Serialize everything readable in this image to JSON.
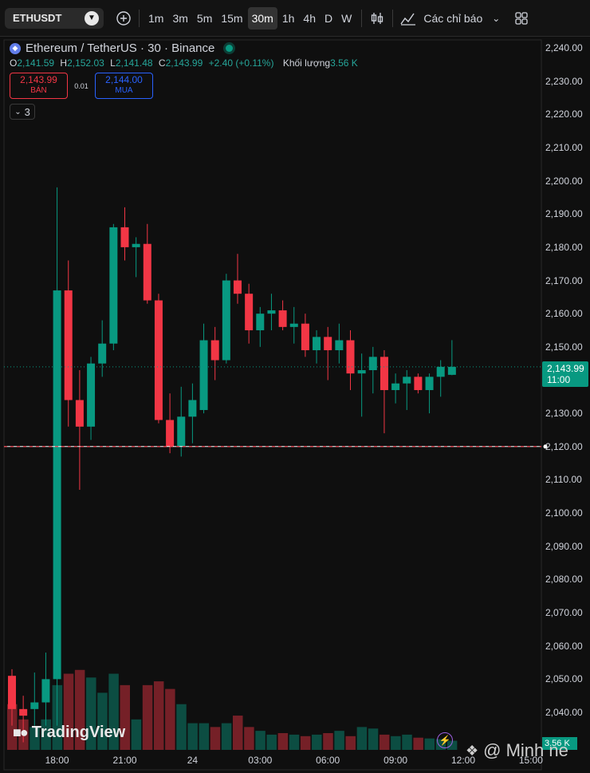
{
  "toolbar": {
    "symbol": "ETHUSDT",
    "timeframes": [
      "1m",
      "3m",
      "5m",
      "15m",
      "30m",
      "1h",
      "4h",
      "D",
      "W"
    ],
    "active_timeframe": "30m",
    "indicators_label": "Các chỉ báo"
  },
  "legend": {
    "title": "Ethereum / TetherUS · 30 · Binance",
    "open_key": "O",
    "open": "2,141.59",
    "high_key": "H",
    "high": "2,152.03",
    "low_key": "L",
    "low": "2,141.48",
    "close_key": "C",
    "close": "2,143.99",
    "change": "+2.40 (+0.11%)",
    "volume_label": "Khối lượng",
    "volume": "3.56 K",
    "sell_price": "2,143.99",
    "sell_label": "BÁN",
    "spread": "0.01",
    "buy_price": "2,144.00",
    "buy_label": "MUA",
    "collapsed_count": "3"
  },
  "price_tag": {
    "price": "2,143.99",
    "countdown": "11:00"
  },
  "volume_tag": "3.56 K",
  "branding": {
    "logo_text": "TradingView",
    "watermark": "@ Minh ne"
  },
  "colors": {
    "up": "#089981",
    "down": "#f23645",
    "background": "#0f0f0f",
    "buy": "#2962ff"
  },
  "chart_data": {
    "type": "candlestick",
    "exchange": "Binance",
    "interval": "30",
    "y_tick_labels": [
      "2,240.00",
      "2,230.00",
      "2,220.00",
      "2,210.00",
      "2,200.00",
      "2,190.00",
      "2,180.00",
      "2,170.00",
      "2,160.00",
      "2,150.00",
      "2,140.00",
      "2,130.00",
      "2,120.00",
      "2,110.00",
      "2,100.00",
      "2,090.00",
      "2,080.00",
      "2,070.00",
      "2,060.00",
      "2,050.00",
      "2,040.00"
    ],
    "y_ticks": [
      2240,
      2230,
      2220,
      2210,
      2200,
      2190,
      2180,
      2170,
      2160,
      2150,
      2140,
      2130,
      2120,
      2110,
      2100,
      2090,
      2080,
      2070,
      2060,
      2050,
      2040
    ],
    "x_tick_labels": [
      "18:00",
      "21:00",
      "24",
      "03:00",
      "06:00",
      "09:00",
      "12:00",
      "15:00"
    ],
    "x_tick_index": [
      4,
      10,
      16,
      22,
      28,
      34,
      40,
      46
    ],
    "current_price": 2143.99,
    "horizontal_line": 2120,
    "candles": [
      {
        "o": 2051,
        "h": 2053,
        "l": 2036,
        "c": 2041
      },
      {
        "o": 2041,
        "h": 2045,
        "l": 2031,
        "c": 2039
      },
      {
        "o": 2041,
        "h": 2052,
        "l": 2036,
        "c": 2043
      },
      {
        "o": 2043,
        "h": 2058,
        "l": 2036,
        "c": 2050
      },
      {
        "o": 2050,
        "h": 2198,
        "l": 2036,
        "c": 2167
      },
      {
        "o": 2167,
        "h": 2176,
        "l": 2126,
        "c": 2134
      },
      {
        "o": 2134,
        "h": 2143,
        "l": 2107,
        "c": 2126
      },
      {
        "o": 2126,
        "h": 2147,
        "l": 2122,
        "c": 2145
      },
      {
        "o": 2145,
        "h": 2158,
        "l": 2141,
        "c": 2151
      },
      {
        "o": 2151,
        "h": 2187,
        "l": 2149,
        "c": 2186
      },
      {
        "o": 2186,
        "h": 2192,
        "l": 2176,
        "c": 2180
      },
      {
        "o": 2180,
        "h": 2183,
        "l": 2171,
        "c": 2181
      },
      {
        "o": 2181,
        "h": 2187,
        "l": 2163,
        "c": 2164
      },
      {
        "o": 2164,
        "h": 2166,
        "l": 2127,
        "c": 2128
      },
      {
        "o": 2128,
        "h": 2136,
        "l": 2118,
        "c": 2120
      },
      {
        "o": 2120,
        "h": 2138,
        "l": 2117,
        "c": 2129
      },
      {
        "o": 2129,
        "h": 2139,
        "l": 2121,
        "c": 2134
      },
      {
        "o": 2131,
        "h": 2157,
        "l": 2130,
        "c": 2152
      },
      {
        "o": 2152,
        "h": 2156,
        "l": 2140,
        "c": 2146
      },
      {
        "o": 2146,
        "h": 2172,
        "l": 2145,
        "c": 2170
      },
      {
        "o": 2170,
        "h": 2178,
        "l": 2163,
        "c": 2166
      },
      {
        "o": 2166,
        "h": 2169,
        "l": 2151,
        "c": 2155
      },
      {
        "o": 2155,
        "h": 2162,
        "l": 2150,
        "c": 2160
      },
      {
        "o": 2160,
        "h": 2166,
        "l": 2155,
        "c": 2161
      },
      {
        "o": 2161,
        "h": 2164,
        "l": 2155,
        "c": 2156
      },
      {
        "o": 2156,
        "h": 2162,
        "l": 2151,
        "c": 2157
      },
      {
        "o": 2157,
        "h": 2160,
        "l": 2147,
        "c": 2149
      },
      {
        "o": 2149,
        "h": 2155,
        "l": 2145,
        "c": 2153
      },
      {
        "o": 2153,
        "h": 2156,
        "l": 2140,
        "c": 2149
      },
      {
        "o": 2149,
        "h": 2157,
        "l": 2145,
        "c": 2152
      },
      {
        "o": 2152,
        "h": 2155,
        "l": 2137,
        "c": 2142
      },
      {
        "o": 2142,
        "h": 2148,
        "l": 2129,
        "c": 2143
      },
      {
        "o": 2143,
        "h": 2150,
        "l": 2136,
        "c": 2147
      },
      {
        "o": 2147,
        "h": 2149,
        "l": 2124,
        "c": 2137
      },
      {
        "o": 2137,
        "h": 2142,
        "l": 2133,
        "c": 2139
      },
      {
        "o": 2139,
        "h": 2143,
        "l": 2131,
        "c": 2141
      },
      {
        "o": 2141,
        "h": 2142,
        "l": 2136,
        "c": 2137
      },
      {
        "o": 2137,
        "h": 2142,
        "l": 2130,
        "c": 2141
      },
      {
        "o": 2141,
        "h": 2146,
        "l": 2135,
        "c": 2144
      },
      {
        "o": 2141.59,
        "h": 2152.03,
        "l": 2141.48,
        "c": 2143.99
      }
    ],
    "volumes": [
      60,
      40,
      30,
      40,
      85,
      100,
      105,
      95,
      75,
      100,
      85,
      40,
      85,
      90,
      80,
      60,
      35,
      35,
      30,
      35,
      45,
      30,
      25,
      20,
      22,
      20,
      18,
      20,
      22,
      25,
      18,
      30,
      28,
      20,
      18,
      20,
      16,
      15,
      14,
      12
    ]
  }
}
